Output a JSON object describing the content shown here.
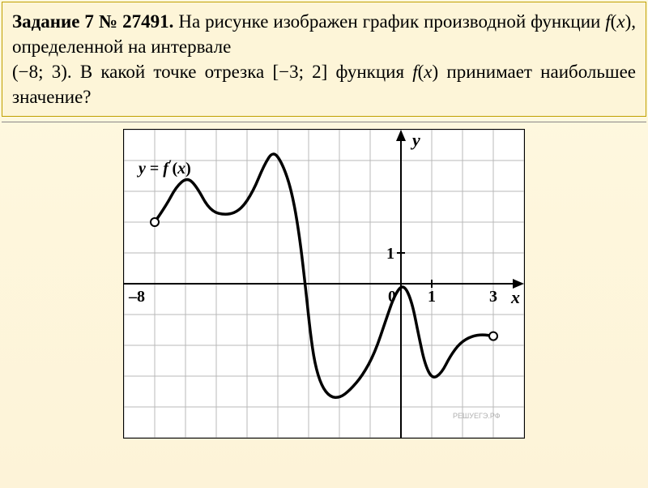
{
  "task": {
    "prefix": "Задание 7 № 27491.",
    "line1": " На рисунке изображен график производной функции ",
    "func1": "f",
    "arg_open": "(",
    "var1": "x",
    "arg_close": ")",
    "line2": ", определенной на интервале",
    "line3": " (−8; 3). В какой точке отрезка [−3; 2] функция ",
    "func2": "f",
    "arg_open2": "(",
    "var2": "x",
    "arg_close2": ")",
    "line4": " принимает наибольшее значение?"
  },
  "chart": {
    "type": "line",
    "width_cells": 13,
    "height_cells": 10,
    "cell_size": 38,
    "origin_col": 9,
    "origin_row": 5,
    "grid_color": "#b8b8b8",
    "background_color": "#ffffff",
    "axis_color": "#000000",
    "curve_color": "#000000",
    "curve_width": 3.5,
    "y_axis_label": "y",
    "x_axis_label": "x",
    "ticks": {
      "origin": "0",
      "x_one": "1",
      "x_three": "3",
      "x_neg8": "–8",
      "y_one": "1"
    },
    "func_label_y": "y = f",
    "func_label_prime": "′",
    "func_label_x": "(x)",
    "watermark": "РЕШУЕГЭ.РФ",
    "endpoints": [
      {
        "col": 1.0,
        "row": 3.0,
        "open": true
      },
      {
        "col": 12.0,
        "row": 6.7,
        "open": true
      }
    ],
    "curve_points": [
      [
        1.0,
        3.0
      ],
      [
        1.35,
        2.5
      ],
      [
        1.7,
        1.85
      ],
      [
        2.05,
        1.55
      ],
      [
        2.35,
        1.82
      ],
      [
        2.8,
        2.65
      ],
      [
        3.35,
        2.78
      ],
      [
        3.8,
        2.6
      ],
      [
        4.2,
        2.0
      ],
      [
        4.55,
        1.15
      ],
      [
        4.85,
        0.68
      ],
      [
        5.15,
        1.1
      ],
      [
        5.45,
        1.98
      ],
      [
        5.7,
        3.4
      ],
      [
        5.92,
        5.3
      ],
      [
        6.05,
        6.55
      ],
      [
        6.2,
        7.6
      ],
      [
        6.42,
        8.32
      ],
      [
        6.7,
        8.68
      ],
      [
        7.02,
        8.7
      ],
      [
        7.35,
        8.45
      ],
      [
        7.75,
        7.98
      ],
      [
        8.15,
        7.25
      ],
      [
        8.52,
        6.15
      ],
      [
        8.8,
        5.35
      ],
      [
        9.08,
        5.0
      ],
      [
        9.35,
        5.55
      ],
      [
        9.58,
        6.7
      ],
      [
        9.78,
        7.62
      ],
      [
        10.02,
        8.1
      ],
      [
        10.32,
        7.9
      ],
      [
        10.6,
        7.35
      ],
      [
        10.92,
        6.92
      ],
      [
        11.3,
        6.7
      ],
      [
        11.65,
        6.65
      ],
      [
        12.0,
        6.7
      ]
    ]
  }
}
